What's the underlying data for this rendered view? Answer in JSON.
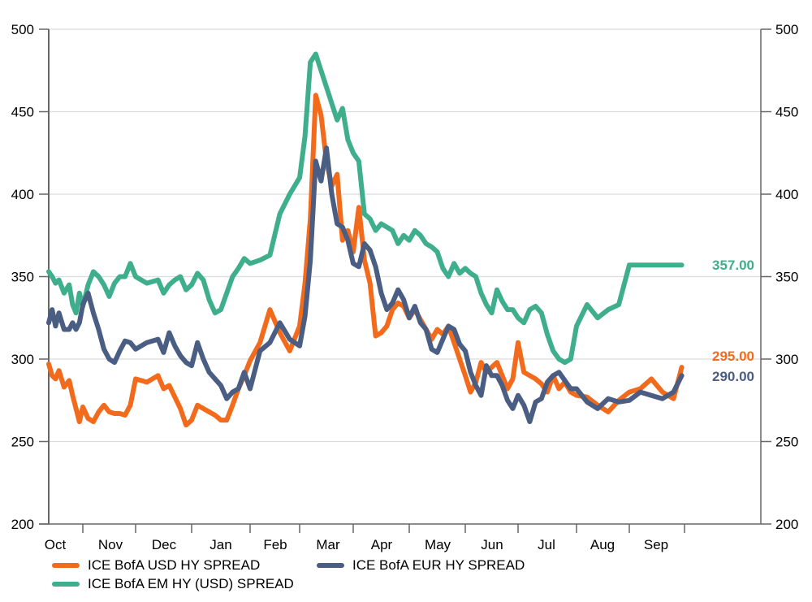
{
  "chart_data": {
    "type": "line",
    "title": "",
    "xlabel": "",
    "ylabel": "",
    "ylim": [
      200,
      500
    ],
    "y_ticks": [
      200,
      250,
      300,
      350,
      400,
      450,
      500
    ],
    "y_tick_labels": [
      "200",
      "250",
      "300",
      "350",
      "400",
      "450",
      "500"
    ],
    "y2_ticks": [
      200,
      250,
      300,
      350,
      400,
      450,
      500
    ],
    "y2_tick_labels": [
      "200",
      "250",
      "300",
      "350",
      "400",
      "450",
      "500"
    ],
    "x_tick_labels": [
      "Oct",
      "Nov",
      "Dec",
      "Jan",
      "Feb",
      "Mar",
      "Apr",
      "May",
      "Jun",
      "Jul",
      "Aug",
      "Sep"
    ],
    "x_range_months": [
      0,
      13.2
    ],
    "grid": true,
    "legend_position": "bottom",
    "series": [
      {
        "name": "ICE BofA USD HY SPREAD",
        "color": "#f26b1d",
        "end_label": "295.00",
        "end_value": 295,
        "x": [
          0,
          0.1,
          0.2,
          0.3,
          0.45,
          0.6,
          0.7,
          0.8,
          0.9,
          1.0,
          1.1,
          1.2,
          1.3,
          1.4,
          1.5,
          1.6,
          1.7,
          1.8,
          1.9,
          2.0,
          2.2,
          2.4,
          2.5,
          2.6,
          2.7,
          2.8,
          2.9,
          3.0,
          3.1,
          3.2,
          3.3,
          3.4,
          3.5,
          3.6,
          3.7,
          3.8,
          3.9,
          4.0,
          4.2,
          4.4,
          4.6,
          4.8,
          5.0,
          5.1,
          5.2,
          5.3,
          5.4,
          5.5,
          5.6,
          5.7,
          5.8,
          5.9,
          6.0,
          6.1,
          6.2,
          6.3,
          6.4,
          6.5,
          6.6,
          6.7,
          6.8,
          6.9,
          7.0,
          7.1,
          7.2,
          7.3,
          7.4,
          7.5,
          7.6,
          7.7,
          7.8,
          7.9,
          8.0,
          8.1,
          8.2,
          8.3,
          8.4,
          8.5,
          8.6,
          8.7,
          8.8,
          8.9,
          9.0,
          9.1,
          9.2,
          9.3,
          9.4,
          9.5,
          9.6,
          9.7,
          9.8,
          9.9,
          10.0,
          10.2,
          10.4,
          10.6,
          10.8,
          11.0,
          11.2,
          11.4,
          11.6,
          11.8,
          11.95
        ],
        "y": [
          297,
          290,
          288,
          293,
          283,
          287,
          278,
          270,
          262,
          271,
          264,
          262,
          268,
          272,
          268,
          267,
          267,
          266,
          272,
          288,
          286,
          290,
          282,
          284,
          277,
          270,
          260,
          263,
          272,
          270,
          268,
          266,
          263,
          263,
          272,
          282,
          290,
          299,
          310,
          330,
          316,
          305,
          320,
          346,
          385,
          460,
          448,
          420,
          405,
          412,
          372,
          378,
          365,
          392,
          360,
          346,
          314,
          316,
          320,
          330,
          334,
          332,
          325,
          330,
          324,
          318,
          312,
          318,
          315,
          320,
          310,
          300,
          290,
          280,
          286,
          298,
          292,
          295,
          298,
          290,
          282,
          288,
          310,
          292,
          290,
          288,
          285,
          280,
          290,
          282,
          286,
          280,
          278,
          277,
          272,
          268,
          275,
          280,
          282,
          288,
          280,
          276,
          295
        ]
      },
      {
        "name": "ICE BofA EUR HY SPREAD",
        "color": "#4a5d82",
        "end_label": "290.00",
        "end_value": 290,
        "x": [
          0,
          0.1,
          0.2,
          0.3,
          0.45,
          0.6,
          0.7,
          0.8,
          0.9,
          1.0,
          1.1,
          1.2,
          1.3,
          1.4,
          1.5,
          1.6,
          1.7,
          1.8,
          1.9,
          2.0,
          2.2,
          2.4,
          2.5,
          2.6,
          2.7,
          2.8,
          2.9,
          3.0,
          3.1,
          3.2,
          3.3,
          3.4,
          3.5,
          3.6,
          3.7,
          3.8,
          3.9,
          4.0,
          4.2,
          4.4,
          4.6,
          4.8,
          5.0,
          5.1,
          5.2,
          5.3,
          5.4,
          5.5,
          5.6,
          5.7,
          5.8,
          5.9,
          6.0,
          6.1,
          6.2,
          6.3,
          6.4,
          6.5,
          6.6,
          6.7,
          6.8,
          6.9,
          7.0,
          7.1,
          7.2,
          7.3,
          7.4,
          7.5,
          7.6,
          7.7,
          7.8,
          7.9,
          8.0,
          8.1,
          8.2,
          8.3,
          8.4,
          8.5,
          8.6,
          8.7,
          8.8,
          8.9,
          9.0,
          9.1,
          9.2,
          9.3,
          9.4,
          9.5,
          9.6,
          9.7,
          9.8,
          9.9,
          10.0,
          10.2,
          10.4,
          10.6,
          10.8,
          11.0,
          11.2,
          11.4,
          11.6,
          11.8,
          11.95
        ],
        "y": [
          322,
          330,
          320,
          328,
          318,
          318,
          322,
          318,
          322,
          333,
          340,
          328,
          318,
          306,
          300,
          298,
          305,
          311,
          310,
          306,
          310,
          312,
          304,
          316,
          308,
          302,
          298,
          296,
          310,
          300,
          292,
          288,
          284,
          276,
          280,
          282,
          292,
          282,
          305,
          310,
          322,
          312,
          308,
          326,
          360,
          420,
          408,
          428,
          400,
          382,
          380,
          372,
          358,
          356,
          370,
          366,
          356,
          340,
          330,
          334,
          342,
          336,
          325,
          332,
          322,
          318,
          306,
          304,
          312,
          320,
          318,
          309,
          305,
          292,
          284,
          278,
          296,
          290,
          290,
          284,
          275,
          270,
          278,
          272,
          262,
          274,
          276,
          286,
          290,
          292,
          287,
          282,
          282,
          274,
          270,
          276,
          274,
          275,
          280,
          278,
          276,
          280,
          290
        ]
      },
      {
        "name": "ICE BofA EM HY (USD) SPREAD",
        "color": "#3fae8c",
        "end_label": "357.00",
        "end_value": 357,
        "x": [
          0,
          0.1,
          0.2,
          0.3,
          0.45,
          0.6,
          0.7,
          0.8,
          0.9,
          1.0,
          1.1,
          1.2,
          1.3,
          1.4,
          1.5,
          1.6,
          1.7,
          1.8,
          1.9,
          2.0,
          2.2,
          2.4,
          2.5,
          2.6,
          2.7,
          2.8,
          2.9,
          3.0,
          3.1,
          3.2,
          3.3,
          3.4,
          3.5,
          3.6,
          3.7,
          3.8,
          3.9,
          4.0,
          4.2,
          4.4,
          4.6,
          4.8,
          5.0,
          5.1,
          5.2,
          5.3,
          5.4,
          5.5,
          5.6,
          5.7,
          5.8,
          5.9,
          6.0,
          6.1,
          6.2,
          6.3,
          6.4,
          6.5,
          6.6,
          6.7,
          6.8,
          6.9,
          7.0,
          7.1,
          7.2,
          7.3,
          7.4,
          7.5,
          7.6,
          7.7,
          7.8,
          7.9,
          8.0,
          8.1,
          8.2,
          8.3,
          8.4,
          8.5,
          8.6,
          8.7,
          8.8,
          8.9,
          9.0,
          9.1,
          9.2,
          9.3,
          9.4,
          9.5,
          9.6,
          9.7,
          9.8,
          9.9,
          10.0,
          10.2,
          10.4,
          10.6,
          10.8,
          11.0,
          11.1,
          11.2,
          11.3,
          11.4,
          11.5,
          11.6,
          11.7,
          11.8,
          11.95
        ],
        "y": [
          353,
          350,
          346,
          348,
          340,
          345,
          333,
          328,
          340,
          332,
          345,
          353,
          350,
          345,
          338,
          346,
          350,
          350,
          358,
          350,
          346,
          348,
          340,
          345,
          348,
          350,
          342,
          345,
          352,
          348,
          336,
          328,
          330,
          340,
          350,
          355,
          361,
          358,
          360,
          363,
          388,
          400,
          410,
          435,
          480,
          485,
          475,
          465,
          455,
          445,
          452,
          433,
          425,
          420,
          388,
          385,
          378,
          382,
          380,
          378,
          370,
          375,
          372,
          378,
          375,
          370,
          368,
          365,
          355,
          350,
          358,
          352,
          355,
          352,
          350,
          340,
          333,
          328,
          342,
          335,
          330,
          330,
          325,
          322,
          330,
          332,
          328,
          315,
          305,
          300,
          298,
          300,
          320,
          333,
          325,
          330,
          333,
          357,
          357,
          357,
          357,
          357,
          357,
          357,
          357,
          357,
          357
        ]
      }
    ]
  },
  "legend": {
    "items": [
      {
        "label": "ICE BofA USD HY SPREAD",
        "color": "#f26b1d"
      },
      {
        "label": "ICE BofA EUR HY SPREAD",
        "color": "#4a5d82"
      },
      {
        "label": "ICE BofA EM HY (USD) SPREAD",
        "color": "#3fae8c"
      }
    ]
  }
}
